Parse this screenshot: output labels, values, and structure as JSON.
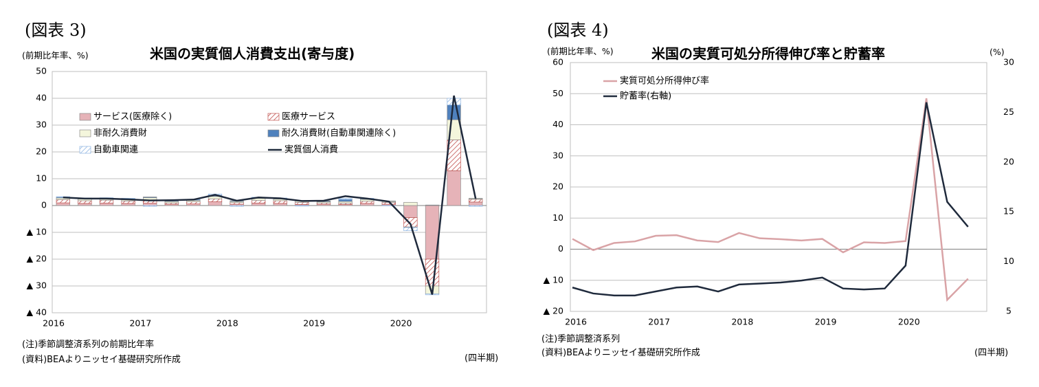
{
  "fig3": {
    "label": "(図表 3)",
    "title": "米国の実質個人消費支出(寄与度)",
    "unit": "(前期比年率、%)",
    "note1": "(注)季節調整済系列の前期比年率",
    "note2": "(資料)BEAよりニッセイ基礎研究所作成",
    "period": "(四半期)"
  },
  "fig4": {
    "label": "(図表 4)",
    "title": "米国の実質可処分所得伸び率と貯蓄率",
    "unit_left": "(前期比年率、%)",
    "unit_right": "(%)",
    "note1": "(注)季節調整済系列",
    "note2": "(資料)BEAよりニッセイ基礎研究所作成",
    "period": "(四半期)"
  },
  "chart_data": [
    {
      "type": "bar",
      "stacked": true,
      "title": "米国の実質個人消費支出(寄与度)",
      "ylabel": "(前期比年率、%)",
      "xlabel": "(四半期)",
      "ylim": [
        -40,
        50
      ],
      "yticks": [
        50,
        40,
        30,
        20,
        10,
        0,
        -10,
        -20,
        -30,
        -40
      ],
      "ytick_labels": [
        "50",
        "40",
        "30",
        "20",
        "10",
        "0",
        "▲ 10",
        "▲ 20",
        "▲ 30",
        "▲ 40"
      ],
      "year_labels": [
        "2016",
        "2017",
        "2018",
        "2019",
        "2020"
      ],
      "categories": [
        "2016Q1",
        "2016Q2",
        "2016Q3",
        "2016Q4",
        "2017Q1",
        "2017Q2",
        "2017Q3",
        "2017Q4",
        "2018Q1",
        "2018Q2",
        "2018Q3",
        "2018Q4",
        "2019Q1",
        "2019Q2",
        "2019Q3",
        "2019Q4",
        "2020Q1",
        "2020Q2",
        "2020Q3",
        "2020Q4"
      ],
      "grid": true,
      "legend_position": "upper-left",
      "series": [
        {
          "name": "サービス(医療除く)",
          "color": "#e6b3b8",
          "pattern": "solid",
          "values": [
            1.0,
            0.8,
            0.9,
            0.8,
            0.9,
            0.5,
            0.6,
            1.4,
            0.5,
            0.9,
            0.8,
            0.4,
            0.5,
            0.4,
            0.8,
            0.5,
            -4.5,
            -20.0,
            13.0,
            1.3
          ]
        },
        {
          "name": "医療サービス",
          "color": "#c0504d",
          "pattern": "diagonal",
          "values": [
            1.2,
            1.0,
            1.1,
            0.9,
            1.2,
            0.5,
            0.8,
            1.1,
            0.6,
            1.0,
            1.0,
            0.8,
            0.5,
            0.5,
            0.8,
            0.7,
            -3.5,
            -10.0,
            11.5,
            1.0
          ]
        },
        {
          "name": "非耐久消費財",
          "color": "#f4f6dc",
          "pattern": "solid",
          "values": [
            0.6,
            0.6,
            0.5,
            0.5,
            0.8,
            0.5,
            0.5,
            0.9,
            0.4,
            0.8,
            0.6,
            0.5,
            0.4,
            0.6,
            0.7,
            0.3,
            1.2,
            -3.0,
            7.5,
            0.3
          ]
        },
        {
          "name": "耐久消費財(自動車関連除く)",
          "color": "#4f81bd",
          "pattern": "solid",
          "values": [
            0.3,
            0.3,
            0.3,
            0.3,
            0.3,
            0.3,
            0.3,
            0.5,
            0.3,
            0.3,
            0.3,
            0.2,
            0.3,
            0.8,
            0.3,
            0.2,
            -0.2,
            0.2,
            5.5,
            0.1
          ]
        },
        {
          "name": "自動車関連",
          "color": "#8db4e2",
          "pattern": "diagonal",
          "values": [
            0.2,
            0.1,
            0.1,
            0.2,
            -0.3,
            0.1,
            0.1,
            0.4,
            -0.3,
            0.1,
            0.1,
            -0.2,
            0.0,
            0.3,
            0.1,
            -0.1,
            -1.2,
            -0.3,
            2.5,
            -0.3
          ]
        }
      ],
      "line_series": {
        "name": "実質個人消費",
        "color": "#1f2a3c",
        "values": [
          3.0,
          2.6,
          2.6,
          2.3,
          1.9,
          2.0,
          2.2,
          4.0,
          1.8,
          3.0,
          2.7,
          1.7,
          1.8,
          3.5,
          2.6,
          1.5,
          -6.9,
          -33.2,
          41.0,
          2.5
        ]
      }
    },
    {
      "type": "line",
      "title": "米国の実質可処分所得伸び率と貯蓄率",
      "ylabel": "(前期比年率、%)",
      "y2label": "(%)",
      "xlabel": "(四半期)",
      "ylim": [
        -20,
        60
      ],
      "y2lim": [
        5,
        30
      ],
      "yticks": [
        60,
        50,
        40,
        30,
        20,
        10,
        0,
        -10,
        -20
      ],
      "ytick_labels": [
        "60",
        "50",
        "40",
        "30",
        "20",
        "10",
        "0",
        "▲ 10",
        "▲ 20"
      ],
      "y2ticks": [
        30,
        25,
        20,
        15,
        10,
        5
      ],
      "year_labels": [
        "2016",
        "2017",
        "2018",
        "2019",
        "2020"
      ],
      "categories": [
        "2016Q1",
        "2016Q2",
        "2016Q3",
        "2016Q4",
        "2017Q1",
        "2017Q2",
        "2017Q3",
        "2017Q4",
        "2018Q1",
        "2018Q2",
        "2018Q3",
        "2018Q4",
        "2019Q1",
        "2019Q2",
        "2019Q3",
        "2019Q4",
        "2020Q1",
        "2020Q2",
        "2020Q3",
        "2020Q4"
      ],
      "grid": true,
      "legend_position": "upper-left",
      "series": [
        {
          "name": "実質可処分所得伸び率",
          "axis": "left",
          "color": "#d9a3a6",
          "values": [
            3.3,
            -0.3,
            2.0,
            2.5,
            4.3,
            4.5,
            2.8,
            2.3,
            5.2,
            3.5,
            3.2,
            2.8,
            3.3,
            -1.0,
            2.2,
            2.0,
            2.6,
            48.5,
            -16.3,
            -9.5
          ]
        },
        {
          "name": "貯蓄率(右軸)",
          "axis": "right",
          "color": "#1f2a3c",
          "values": [
            7.4,
            6.8,
            6.6,
            6.6,
            7.0,
            7.4,
            7.5,
            7.0,
            7.7,
            7.8,
            7.9,
            8.1,
            8.4,
            7.3,
            7.2,
            7.3,
            9.6,
            26.0,
            16.0,
            13.5
          ]
        }
      ]
    }
  ]
}
